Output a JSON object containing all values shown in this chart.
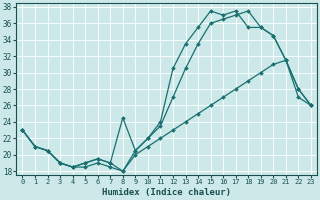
{
  "xlabel": "Humidex (Indice chaleur)",
  "bg_color": "#cce8e8",
  "grid_color": "#ffffff",
  "line_color": "#1a7070",
  "xlim": [
    -0.5,
    23.5
  ],
  "ylim": [
    17.5,
    38.5
  ],
  "xticks": [
    0,
    1,
    2,
    3,
    4,
    5,
    6,
    7,
    8,
    9,
    10,
    11,
    12,
    13,
    14,
    15,
    16,
    17,
    18,
    19,
    20,
    21,
    22,
    23
  ],
  "yticks": [
    18,
    20,
    22,
    24,
    26,
    28,
    30,
    32,
    34,
    36,
    38
  ],
  "line_top_x": [
    0,
    1,
    2,
    3,
    4,
    5,
    6,
    7,
    8,
    9,
    10,
    11,
    12,
    13,
    14,
    15,
    16,
    17,
    18,
    19,
    20,
    21,
    22,
    23
  ],
  "line_top_y": [
    23,
    21,
    20.5,
    19,
    18.5,
    19,
    19.5,
    19,
    18,
    20.5,
    22,
    24,
    30.5,
    33.5,
    35.5,
    37.5,
    37,
    37.5,
    35.5,
    35.5,
    34.5,
    31.5,
    28,
    26
  ],
  "line_mid_x": [
    0,
    1,
    2,
    3,
    4,
    5,
    6,
    7,
    8,
    9,
    10,
    11,
    12,
    13,
    14,
    15,
    16,
    17,
    18,
    19,
    20,
    21,
    22,
    23
  ],
  "line_mid_y": [
    23,
    21,
    20.5,
    19,
    18.5,
    19,
    19.5,
    19,
    24.5,
    20.5,
    22,
    23.5,
    27,
    30.5,
    33.5,
    36,
    36.5,
    37,
    37.5,
    35.5,
    34.5,
    31.5,
    28,
    26
  ],
  "line_bot_x": [
    0,
    1,
    2,
    3,
    4,
    5,
    6,
    7,
    8,
    9,
    10,
    11,
    12,
    13,
    14,
    15,
    16,
    17,
    18,
    19,
    20,
    21,
    22,
    23
  ],
  "line_bot_y": [
    23,
    21,
    20.5,
    19,
    18.5,
    18.5,
    19,
    18.5,
    18,
    20,
    21,
    22,
    23,
    24,
    25,
    26,
    27,
    28,
    29,
    30,
    31,
    31.5,
    27,
    26
  ]
}
